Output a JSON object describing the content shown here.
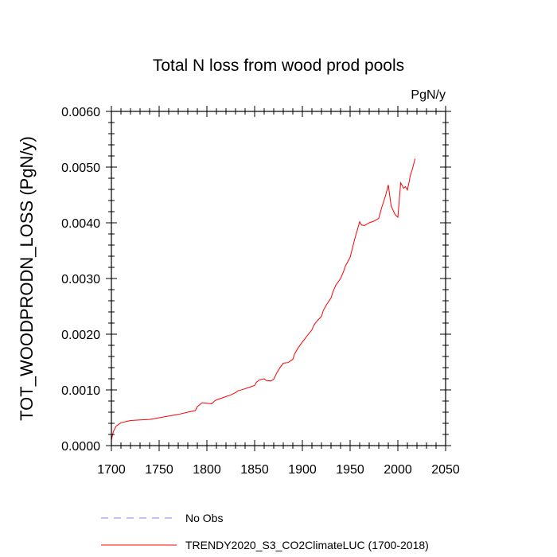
{
  "chart_data": {
    "type": "line",
    "title": "Total N loss from wood prod pools",
    "units": "PgN/y",
    "xlabel": "",
    "ylabel": "TOT_WOODPRODN_LOSS  (PgN/y)",
    "xlim": [
      1700,
      2050
    ],
    "ylim": [
      0.0,
      0.006
    ],
    "xticks": [
      "1700",
      "1750",
      "1800",
      "1850",
      "1900",
      "1950",
      "2000",
      "2050"
    ],
    "yticks": [
      "0.0000",
      "0.0010",
      "0.0020",
      "0.0030",
      "0.0040",
      "0.0050",
      "0.0060"
    ],
    "grid": false,
    "legend_position": "bottom",
    "series": [
      {
        "name": "No Obs",
        "color": "#8080ff",
        "dash": "dashed",
        "x": [],
        "y": []
      },
      {
        "name": "TRENDY2020_S3_CO2ClimateLUC (1700-2018)",
        "color": "#ff0000",
        "dash": "solid",
        "x": [
          1700,
          1702,
          1705,
          1710,
          1715,
          1720,
          1730,
          1740,
          1750,
          1760,
          1770,
          1780,
          1788,
          1790,
          1795,
          1800,
          1805,
          1808,
          1810,
          1815,
          1820,
          1825,
          1830,
          1832,
          1838,
          1845,
          1850,
          1852,
          1855,
          1860,
          1862,
          1867,
          1870,
          1873,
          1877,
          1880,
          1885,
          1890,
          1892,
          1895,
          1900,
          1905,
          1910,
          1912,
          1916,
          1920,
          1922,
          1926,
          1930,
          1932,
          1935,
          1940,
          1943,
          1945,
          1950,
          1955,
          1960,
          1962,
          1965,
          1970,
          1975,
          1980,
          1983,
          1987,
          1990,
          1993,
          1997,
          2000,
          2003,
          2006,
          2008,
          2010,
          2012,
          2013,
          2015,
          2018
        ],
        "y": [
          0.0001,
          0.00025,
          0.00035,
          0.00041,
          0.00043,
          0.00045,
          0.00046,
          0.00047,
          0.0005,
          0.00053,
          0.00056,
          0.0006,
          0.00063,
          0.0007,
          0.00077,
          0.00076,
          0.00075,
          0.0008,
          0.00082,
          0.00085,
          0.00088,
          0.00091,
          0.00095,
          0.00098,
          0.00101,
          0.00105,
          0.00108,
          0.00114,
          0.00118,
          0.0012,
          0.00117,
          0.00116,
          0.00119,
          0.0013,
          0.00141,
          0.00148,
          0.00149,
          0.00155,
          0.00165,
          0.00174,
          0.00186,
          0.00197,
          0.00208,
          0.00216,
          0.00225,
          0.00232,
          0.00243,
          0.00255,
          0.00265,
          0.00276,
          0.00288,
          0.003,
          0.00312,
          0.00322,
          0.00338,
          0.00372,
          0.00402,
          0.00396,
          0.00395,
          0.004,
          0.00403,
          0.00408,
          0.00427,
          0.00448,
          0.00468,
          0.0043,
          0.00415,
          0.0041,
          0.00472,
          0.00462,
          0.00465,
          0.00459,
          0.00475,
          0.00485,
          0.00495,
          0.00515
        ]
      }
    ]
  }
}
